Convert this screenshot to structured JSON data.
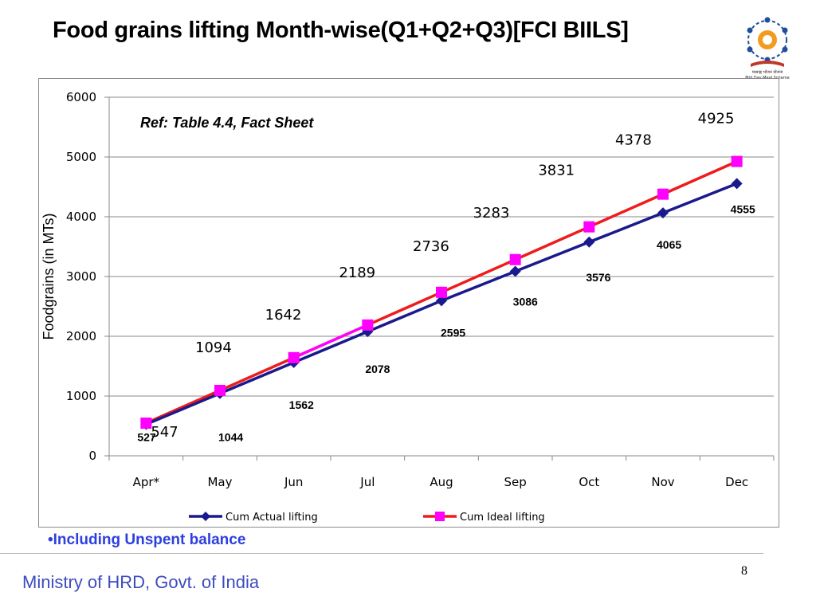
{
  "slide": {
    "title": "Food grains lifting Month-wise(Q1+Q2+Q3)[FCI BIILS]",
    "footnote": "•Including Unspent balance",
    "footer": "Ministry of HRD, Govt. of India",
    "page_number": "8",
    "logo_text": "मध्याह्न भोजन योजना",
    "logo_subtext": "Mid Day Meal Scheme"
  },
  "chart_data": {
    "type": "line",
    "categories": [
      "Apr*",
      "May",
      "Jun",
      "Jul",
      "Aug",
      "Sep",
      "Oct",
      "Nov",
      "Dec"
    ],
    "series": [
      {
        "name": "Cum Actual lifting",
        "values": [
          527,
          1044,
          1562,
          2078,
          2595,
          3086,
          3576,
          4065,
          4555
        ],
        "color": "#1a1a8c",
        "marker": "diamond"
      },
      {
        "name": "Cum Ideal lifting",
        "values": [
          547,
          1094,
          1642,
          2189,
          2736,
          3283,
          3831,
          4378,
          4925
        ],
        "color": "#ee1c1c",
        "marker": "square",
        "marker_color": "#ff00ff"
      }
    ],
    "ylabel": "Foodgrains (in MTs)",
    "ylim": [
      0,
      6000
    ],
    "yticks": [
      0,
      1000,
      2000,
      3000,
      4000,
      5000,
      6000
    ],
    "annotation": "Ref: Table 4.4, Fact Sheet",
    "grid": true,
    "legend": "bottom"
  }
}
